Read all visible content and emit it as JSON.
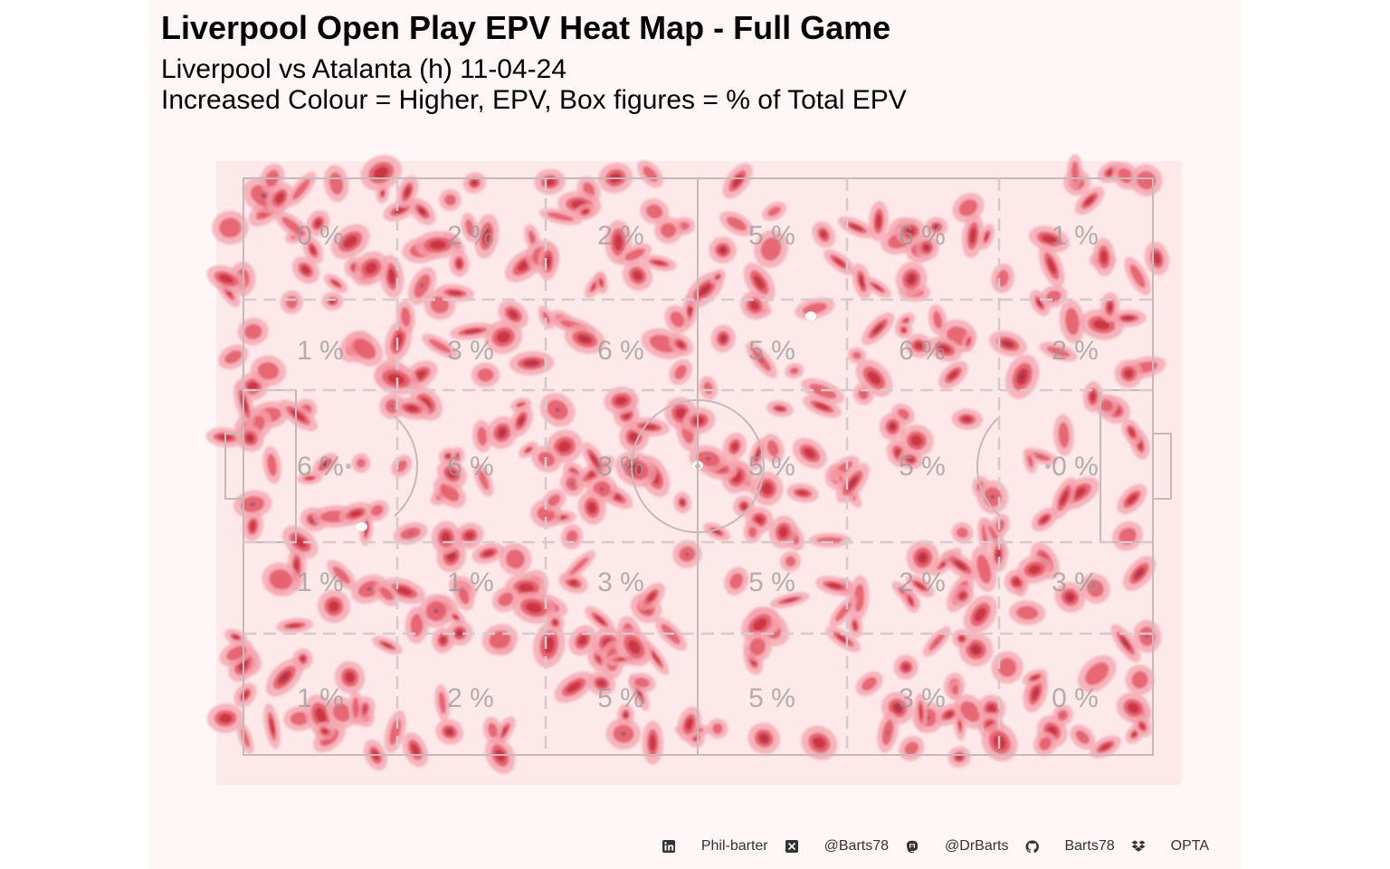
{
  "header": {
    "title": "Liverpool Open Play EPV Heat Map - Full Game",
    "subtitle_line1": "Liverpool vs Atalanta (h) 11-04-24",
    "subtitle_line2": "Increased Colour = Higher, EPV, Box figures = % of Total EPV"
  },
  "colors": {
    "panel": "#fff7f7",
    "pitch_bg": "#fde8ea",
    "pitch_lines": "#c8b8ba",
    "heat_light": "#f4a3ad",
    "heat_mid": "#e55a67",
    "heat_dark": "#c9303f",
    "heat_core": "#4a3d6b",
    "text_muted": "#9a9a9a"
  },
  "chart_data": {
    "type": "heatmap",
    "pitch": {
      "length": 100,
      "width": 100
    },
    "zones": {
      "columns": 6,
      "rows": 5,
      "labels": [
        [
          "0 %",
          "2 %",
          "2 %",
          "5 %",
          "6 %",
          "1 %"
        ],
        [
          "1 %",
          "3 %",
          "6 %",
          "5 %",
          "6 %",
          "2 %"
        ],
        [
          "6 %",
          "6 %",
          "8 %",
          "5 %",
          "5 %",
          "0 %"
        ],
        [
          "1 %",
          "1 %",
          "3 %",
          "5 %",
          "2 %",
          "3 %"
        ],
        [
          "1 %",
          "2 %",
          "5 %",
          "5 %",
          "3 %",
          "0 %"
        ]
      ]
    },
    "heat_seed": 7,
    "heat_blob_count": 420
  },
  "footer": {
    "items": [
      {
        "icon": "linkedin-icon",
        "label": "Phil-barter"
      },
      {
        "icon": "x-icon",
        "label": "@Barts78"
      },
      {
        "icon": "mastodon-icon",
        "label": "@DrBarts"
      },
      {
        "icon": "github-icon",
        "label": "Barts78"
      },
      {
        "icon": "dropbox-icon",
        "label": "OPTA"
      }
    ]
  }
}
